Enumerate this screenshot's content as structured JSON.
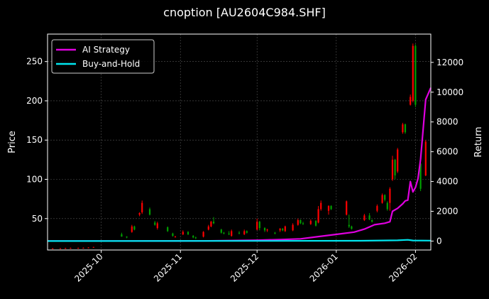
{
  "title": "cnoption [AU2604C984.SHF]",
  "chart_data": {
    "type": "candlestick+line",
    "title": "cnoption [AU2604C984.SHF]",
    "ylabel_left": "Price",
    "ylabel_right": "Return",
    "ylim_left": [
      10,
      285
    ],
    "ylim_right": [
      -600,
      13900
    ],
    "xlim": [
      "2025-09-10",
      "2026-02-07"
    ],
    "xticks": [
      "2025-10",
      "2025-11",
      "2025-12",
      "2026-01",
      "2026-02"
    ],
    "yticks_left": [
      50,
      100,
      150,
      200,
      250
    ],
    "yticks_right": [
      0,
      2000,
      4000,
      6000,
      8000,
      10000,
      12000
    ],
    "grid": true,
    "legend_position": "top-left",
    "colors": {
      "background": "#000000",
      "up": "#ff0000",
      "down": "#00a000",
      "strategy": "#e000e0",
      "hold": "#00e5ee"
    },
    "series": [
      {
        "name": "AI Strategy",
        "color": "#e000e0",
        "points": [
          [
            "2025-09-10",
            0
          ],
          [
            "2025-10-10",
            0
          ],
          [
            "2025-11-10",
            10
          ],
          [
            "2025-12-01",
            60
          ],
          [
            "2025-12-10",
            100
          ],
          [
            "2025-12-18",
            150
          ],
          [
            "2025-12-25",
            300
          ],
          [
            "2026-01-01",
            450
          ],
          [
            "2026-01-08",
            600
          ],
          [
            "2026-01-12",
            800
          ],
          [
            "2026-01-16",
            1100
          ],
          [
            "2026-01-20",
            1200
          ],
          [
            "2026-01-22",
            1300
          ],
          [
            "2026-01-23",
            2000
          ],
          [
            "2026-01-25",
            2200
          ],
          [
            "2026-01-27",
            2500
          ],
          [
            "2026-01-28",
            2700
          ],
          [
            "2026-01-29",
            2750
          ],
          [
            "2026-01-30",
            4000
          ],
          [
            "2026-01-31",
            3300
          ],
          [
            "2026-02-01",
            3600
          ],
          [
            "2026-02-02",
            4200
          ],
          [
            "2026-02-03",
            5500
          ],
          [
            "2026-02-04",
            7500
          ],
          [
            "2026-02-05",
            9500
          ],
          [
            "2026-02-07",
            10300
          ]
        ]
      },
      {
        "name": "Buy-and-Hold",
        "color": "#00e5ee",
        "points": [
          [
            "2025-09-10",
            0
          ],
          [
            "2025-12-01",
            10
          ],
          [
            "2026-01-10",
            20
          ],
          [
            "2026-01-25",
            50
          ],
          [
            "2026-01-29",
            80
          ],
          [
            "2026-01-31",
            40
          ],
          [
            "2026-02-07",
            30
          ]
        ]
      }
    ],
    "candles": [
      [
        "2025-09-12",
        12,
        12.5,
        11.5,
        12
      ],
      [
        "2025-09-15",
        12,
        12.5,
        11.5,
        12.2
      ],
      [
        "2025-09-17",
        12.2,
        12.8,
        11.8,
        12.3
      ],
      [
        "2025-09-19",
        12.3,
        13,
        12,
        12.5
      ],
      [
        "2025-09-22",
        12.5,
        13,
        12,
        12.6
      ],
      [
        "2025-09-24",
        12.6,
        13.2,
        12.2,
        12.8
      ],
      [
        "2025-09-26",
        12.8,
        13.5,
        12.5,
        13.2
      ],
      [
        "2025-09-28",
        13.2,
        14,
        13,
        13.8
      ],
      [
        "2025-10-09",
        30,
        32,
        27,
        27
      ],
      [
        "2025-10-11",
        27,
        27.5,
        25,
        26
      ],
      [
        "2025-10-13",
        33,
        42,
        32,
        40
      ],
      [
        "2025-10-14",
        40,
        41,
        35,
        36
      ],
      [
        "2025-10-16",
        55,
        58,
        53,
        57
      ],
      [
        "2025-10-17",
        58,
        73,
        56,
        70
      ],
      [
        "2025-10-20",
        62,
        64,
        54,
        55
      ],
      [
        "2025-10-22",
        45,
        47,
        41,
        42
      ],
      [
        "2025-10-23",
        38,
        46,
        36,
        44
      ],
      [
        "2025-10-27",
        39,
        40,
        33,
        34
      ],
      [
        "2025-10-29",
        31,
        32,
        27,
        28
      ],
      [
        "2025-10-30",
        27,
        28,
        26,
        27
      ],
      [
        "2025-11-02",
        30,
        35,
        29,
        33
      ],
      [
        "2025-11-04",
        33,
        34,
        29,
        30
      ],
      [
        "2025-11-06",
        28,
        29,
        25,
        26
      ],
      [
        "2025-11-07",
        26,
        27,
        24,
        25
      ],
      [
        "2025-11-10",
        27,
        34,
        26,
        33
      ],
      [
        "2025-11-12",
        36,
        42,
        35,
        40
      ],
      [
        "2025-11-13",
        40,
        47,
        39,
        46
      ],
      [
        "2025-11-14",
        46,
        52,
        43,
        44
      ],
      [
        "2025-11-17",
        36,
        37,
        31,
        32
      ],
      [
        "2025-11-18",
        32,
        33,
        30,
        31
      ],
      [
        "2025-11-20",
        31,
        34,
        29,
        30
      ],
      [
        "2025-11-21",
        28,
        36,
        27,
        34
      ],
      [
        "2025-11-24",
        32,
        34,
        30,
        31
      ],
      [
        "2025-11-26",
        30,
        36,
        29,
        34
      ],
      [
        "2025-11-27",
        34,
        35,
        31,
        32
      ],
      [
        "2025-12-01",
        36,
        50,
        35,
        46
      ],
      [
        "2025-12-02",
        46,
        47,
        35,
        38
      ],
      [
        "2025-12-04",
        38,
        39,
        33,
        35
      ],
      [
        "2025-12-05",
        35,
        37,
        33,
        36
      ],
      [
        "2025-12-08",
        32,
        33,
        30,
        31
      ],
      [
        "2025-12-10",
        35,
        38,
        33,
        37
      ],
      [
        "2025-12-11",
        37,
        38,
        34,
        35
      ],
      [
        "2025-12-12",
        34,
        41,
        33,
        40
      ],
      [
        "2025-12-15",
        35,
        44,
        34,
        42
      ],
      [
        "2025-12-17",
        42,
        50,
        41,
        48
      ],
      [
        "2025-12-18",
        48,
        49,
        43,
        44
      ],
      [
        "2025-12-19",
        44,
        46,
        42,
        43
      ],
      [
        "2025-12-22",
        43,
        49,
        42,
        47
      ],
      [
        "2025-12-24",
        47,
        48,
        40,
        41
      ],
      [
        "2025-12-25",
        45,
        66,
        44,
        62
      ],
      [
        "2025-12-26",
        62,
        73,
        60,
        70
      ],
      [
        "2025-12-29",
        60,
        67,
        55,
        66
      ],
      [
        "2025-12-30",
        66,
        67,
        61,
        62
      ],
      [
        "2026-01-05",
        55,
        73,
        54,
        72
      ],
      [
        "2026-01-06",
        42,
        55,
        38,
        40
      ],
      [
        "2026-01-07",
        40,
        41,
        36,
        37
      ],
      [
        "2026-01-12",
        48,
        56,
        47,
        54
      ],
      [
        "2026-01-14",
        54,
        57,
        48,
        49
      ],
      [
        "2026-01-15",
        48,
        49,
        45,
        46
      ],
      [
        "2026-01-17",
        60,
        68,
        58,
        66
      ],
      [
        "2026-01-19",
        70,
        82,
        69,
        80
      ],
      [
        "2026-01-20",
        80,
        81,
        72,
        74
      ],
      [
        "2026-01-21",
        70,
        72,
        60,
        62
      ],
      [
        "2026-01-22",
        70,
        90,
        60,
        88
      ],
      [
        "2026-01-23",
        100,
        130,
        98,
        125
      ],
      [
        "2026-01-24",
        125,
        126,
        100,
        105
      ],
      [
        "2026-01-25",
        110,
        140,
        108,
        138
      ],
      [
        "2026-01-27",
        160,
        172,
        158,
        170
      ],
      [
        "2026-01-28",
        170,
        171,
        158,
        160
      ],
      [
        "2026-01-30",
        195,
        208,
        194,
        205
      ],
      [
        "2026-01-31",
        200,
        273,
        198,
        270
      ],
      [
        "2026-02-01",
        270,
        272,
        192,
        195
      ],
      [
        "2026-02-03",
        120,
        121,
        85,
        88
      ],
      [
        "2026-02-05",
        105,
        150,
        104,
        148
      ]
    ]
  }
}
